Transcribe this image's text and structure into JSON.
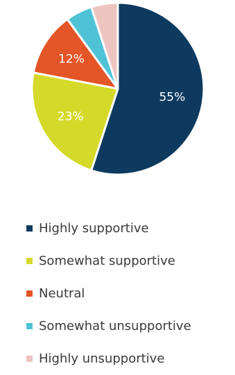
{
  "chart_data": {
    "type": "pie",
    "title": "",
    "legend_position": "bottom",
    "slices": [
      {
        "label": "Highly supportive",
        "value": 55,
        "display": "55%",
        "color": "#0e3a5f"
      },
      {
        "label": "Somewhat supportive",
        "value": 23,
        "display": "23%",
        "color": "#d5d92a"
      },
      {
        "label": "Neutral",
        "value": 12,
        "display": "12%",
        "color": "#e45527"
      },
      {
        "label": "Somewhat unsupportive",
        "value": 5,
        "display": "",
        "color": "#4fc3d6"
      },
      {
        "label": "Highly unsupportive",
        "value": 5,
        "display": "",
        "color": "#eec4c0"
      }
    ]
  }
}
